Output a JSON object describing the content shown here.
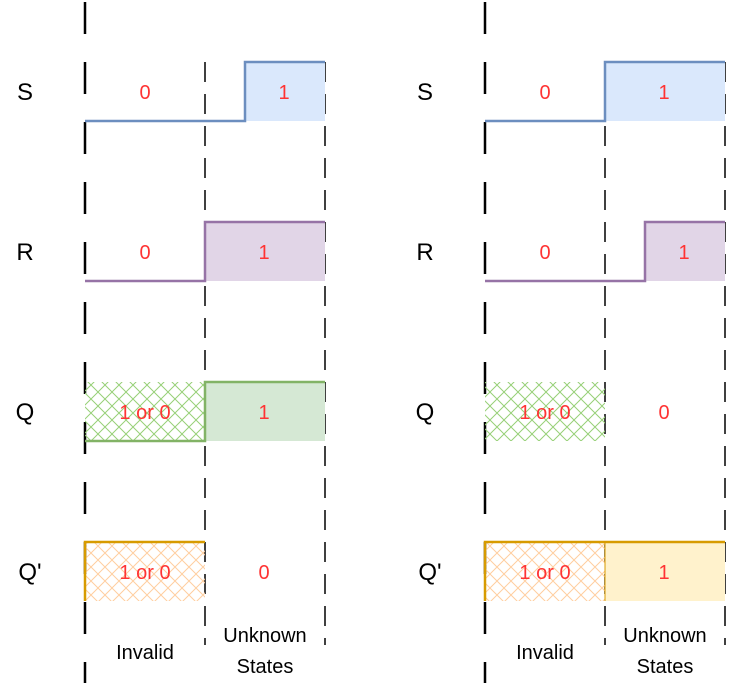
{
  "colors": {
    "value_text": "#ff3333",
    "S": {
      "line": "#6c8ebf",
      "fill": "#dae8fc"
    },
    "R": {
      "line": "#9673a6",
      "fill": "#e1d5e7"
    },
    "Q": {
      "line": "#82b366",
      "fill": "#d5e8d4",
      "hatch": "#97d077"
    },
    "Qbar": {
      "line": "#d79b00",
      "fill": "#fff2cc",
      "hatch": "#ffce9f"
    }
  },
  "panels": [
    {
      "signals": [
        {
          "name": "S",
          "wave": "S",
          "vals": [
            "0",
            "1"
          ]
        },
        {
          "name": "R",
          "wave": "R",
          "vals": [
            "0",
            "1"
          ]
        },
        {
          "name": "Q",
          "wave": "Q",
          "vals": [
            "1 or 0",
            "1"
          ]
        },
        {
          "name": "Q'",
          "wave": "Qbar",
          "vals": [
            "1 or 0",
            "0"
          ]
        }
      ],
      "captions": {
        "invalid": "Invalid",
        "unknown_line1": "Unknown",
        "unknown_line2": "States"
      }
    },
    {
      "signals": [
        {
          "name": "S",
          "wave": "S",
          "vals": [
            "0",
            "1"
          ]
        },
        {
          "name": "R",
          "wave": "R",
          "vals": [
            "0",
            "1"
          ]
        },
        {
          "name": "Q",
          "wave": "Q",
          "vals": [
            "1 or 0",
            "0"
          ]
        },
        {
          "name": "Q'",
          "wave": "Qbar",
          "vals": [
            "1 or 0",
            "1"
          ]
        }
      ],
      "captions": {
        "invalid": "Invalid",
        "unknown_line1": "Unknown",
        "unknown_line2": "States"
      }
    }
  ]
}
